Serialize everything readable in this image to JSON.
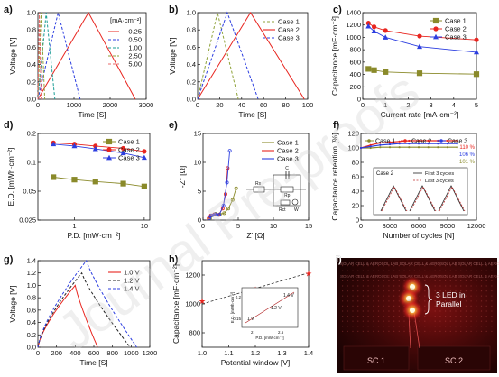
{
  "panel_labels": [
    "a)",
    "b)",
    "c)",
    "d)",
    "e)",
    "f)",
    "g)",
    "h)",
    "i)"
  ],
  "watermark": "Journal Pre-proofs",
  "chart_data": [
    {
      "panel": "a",
      "type": "line",
      "xlabel": "Time [S]",
      "ylabel": "Voltage [V]",
      "xlim": [
        0,
        3000
      ],
      "ylim": [
        0,
        1.0
      ],
      "xticks": [
        0,
        1000,
        2000,
        3000
      ],
      "yticks": [
        0.0,
        0.2,
        0.4,
        0.6,
        0.8,
        1.0
      ],
      "legend_title": "[mA·cm⁻²]",
      "series": [
        {
          "name": "0.25",
          "color": "#e8251f",
          "dash": "solid",
          "x": [
            0,
            1400,
            2700
          ],
          "y": [
            0,
            1.0,
            0
          ]
        },
        {
          "name": "0.50",
          "color": "#2c3ee0",
          "dash": "dash",
          "x": [
            0,
            560,
            1170
          ],
          "y": [
            0,
            1.0,
            0
          ]
        },
        {
          "name": "1.00",
          "color": "#1a9d96",
          "dash": "dash",
          "x": [
            0,
            230,
            470
          ],
          "y": [
            0,
            1.0,
            0
          ]
        },
        {
          "name": "2.50",
          "color": "#8fa23a",
          "dash": "dash",
          "x": [
            0,
            90,
            190
          ],
          "y": [
            0,
            1.0,
            0
          ]
        },
        {
          "name": "5.00",
          "color": "#e86a6a",
          "dash": "dash",
          "x": [
            0,
            40,
            90
          ],
          "y": [
            0,
            1.0,
            0
          ]
        }
      ]
    },
    {
      "panel": "b",
      "type": "line",
      "xlabel": "Time [S]",
      "ylabel": "Voltage [V]",
      "xlim": [
        0,
        100
      ],
      "ylim": [
        0,
        1.0
      ],
      "xticks": [
        0,
        20,
        40,
        60,
        80,
        100
      ],
      "yticks": [
        0.0,
        0.2,
        0.4,
        0.6,
        0.8,
        1.0
      ],
      "series": [
        {
          "name": "Case 1",
          "color": "#8fa23a",
          "dash": "dash",
          "x": [
            0,
            18,
            37
          ],
          "y": [
            0,
            1.0,
            0
          ]
        },
        {
          "name": "Case 2",
          "color": "#e8251f",
          "dash": "solid",
          "x": [
            0,
            48,
            97
          ],
          "y": [
            0,
            1.0,
            0
          ]
        },
        {
          "name": "Case 3",
          "color": "#2c3ee0",
          "dash": "dash",
          "x": [
            0,
            27,
            55
          ],
          "y": [
            0,
            1.0,
            0
          ]
        }
      ]
    },
    {
      "panel": "c",
      "type": "line",
      "xlabel": "Current rate [mA·cm⁻²]",
      "ylabel": "Capacitance [mF·cm⁻²]",
      "xlim": [
        0,
        5
      ],
      "ylim": [
        0,
        1400
      ],
      "xticks": [
        0,
        1,
        2,
        3,
        4,
        5
      ],
      "yticks": [
        0,
        200,
        400,
        600,
        800,
        1000,
        1200,
        1400
      ],
      "x": [
        0.25,
        0.5,
        1.0,
        2.5,
        5.0
      ],
      "series": [
        {
          "name": "Case 1",
          "color": "#8a8a2a",
          "marker": "square",
          "values": [
            490,
            470,
            440,
            420,
            405
          ]
        },
        {
          "name": "Case 2",
          "color": "#e8251f",
          "marker": "circle",
          "values": [
            1230,
            1170,
            1110,
            1020,
            960
          ]
        },
        {
          "name": "Case 3",
          "color": "#2c3ee0",
          "marker": "triangle",
          "values": [
            1180,
            1100,
            1000,
            850,
            760
          ]
        }
      ]
    },
    {
      "panel": "d",
      "type": "line",
      "xlabel": "P.D. [mW·cm⁻²]",
      "ylabel": "E.D. [mWh·cm⁻²]",
      "xscale": "log",
      "yscale": "log",
      "xlim": [
        0.3,
        12
      ],
      "ylim": [
        0.025,
        0.2
      ],
      "xticks": [
        1,
        10
      ],
      "yticks": [
        0.025,
        0.05,
        0.1,
        0.2
      ],
      "x": [
        0.5,
        1,
        2,
        5,
        10
      ],
      "series": [
        {
          "name": "Case 1",
          "color": "#8a8a2a",
          "marker": "square",
          "values": [
            0.07,
            0.066,
            0.063,
            0.06,
            0.056
          ]
        },
        {
          "name": "Case 2",
          "color": "#e8251f",
          "marker": "circle",
          "values": [
            0.16,
            0.155,
            0.148,
            0.14,
            0.13
          ]
        },
        {
          "name": "Case 3",
          "color": "#2c3ee0",
          "marker": "triangle",
          "values": [
            0.155,
            0.148,
            0.138,
            0.125,
            0.112
          ]
        }
      ]
    },
    {
      "panel": "e",
      "type": "scatter",
      "xlabel": "Z' [Ω]",
      "ylabel": "-Z\" [Ω]",
      "xlim": [
        0,
        15
      ],
      "ylim": [
        0,
        15
      ],
      "xticks": [
        0,
        5,
        10,
        15
      ],
      "yticks": [
        0,
        5,
        10,
        15
      ],
      "series": [
        {
          "name": "Case 1",
          "color": "#8a8a2a",
          "x": [
            1.0,
            1.3,
            1.8,
            2.4,
            3.0,
            3.6,
            4.2,
            4.7
          ],
          "y": [
            0.3,
            0.8,
            1.1,
            1.0,
            1.2,
            2.0,
            3.5,
            5.5
          ]
        },
        {
          "name": "Case 2",
          "color": "#e8251f",
          "x": [
            0.8,
            1.1,
            1.6,
            2.2,
            2.8,
            3.2,
            3.5
          ],
          "y": [
            0.3,
            0.8,
            1.0,
            0.9,
            2.0,
            4.5,
            9.0
          ]
        },
        {
          "name": "Case 3",
          "color": "#2c3ee0",
          "x": [
            0.9,
            1.2,
            1.7,
            2.3,
            2.9,
            3.4,
            3.8
          ],
          "y": [
            0.3,
            0.8,
            1.0,
            0.9,
            2.5,
            6.5,
            12.0
          ]
        }
      ],
      "inset": {
        "labels": [
          "Rs",
          "C",
          "Rp",
          "Rct",
          "W"
        ]
      }
    },
    {
      "panel": "f",
      "type": "line",
      "xlabel": "Number of cycles [N]",
      "ylabel": "Capacitance retention [%]",
      "xlim": [
        0,
        12000
      ],
      "ylim": [
        0,
        120
      ],
      "xticks": [
        0,
        3000,
        6000,
        9000,
        12000
      ],
      "yticks": [
        0,
        20,
        40,
        60,
        80,
        100,
        120
      ],
      "x": [
        0,
        1000,
        2000,
        3000,
        4000,
        5000,
        6000,
        7000,
        8000,
        9000,
        10000
      ],
      "series": [
        {
          "name": "Case 1",
          "color": "#8a8a2a",
          "values": [
            100,
            100,
            101,
            101,
            101,
            101,
            101,
            101,
            101,
            101,
            101
          ]
        },
        {
          "name": "Case 2",
          "color": "#e8251f",
          "values": [
            100,
            104,
            107,
            108,
            109,
            110,
            110,
            110,
            110,
            110,
            110
          ]
        },
        {
          "name": "Case 3",
          "color": "#2c3ee0",
          "values": [
            100,
            102,
            104,
            105,
            106,
            106,
            106,
            106,
            106,
            106,
            106
          ]
        }
      ],
      "end_labels": [
        "110 %",
        "106 %",
        "101 %"
      ],
      "inset": {
        "title": "Case 2",
        "legend": [
          "First 3 cycles",
          "Last 3 cycles"
        ]
      }
    },
    {
      "panel": "g",
      "type": "line",
      "xlabel": "Time [S]",
      "ylabel": "Voltage [V]",
      "xlim": [
        0,
        1200
      ],
      "ylim": [
        0,
        1.4
      ],
      "xticks": [
        0,
        200,
        400,
        600,
        800,
        1000,
        1200
      ],
      "yticks": [
        0.0,
        0.2,
        0.4,
        0.6,
        0.8,
        1.0,
        1.2,
        1.4
      ],
      "series": [
        {
          "name": "1.0 V",
          "color": "#e8251f",
          "dash": "solid",
          "x": [
            0,
            400,
            640
          ],
          "y": [
            0,
            1.0,
            0
          ]
        },
        {
          "name": "1.2 V",
          "color": "#222222",
          "dash": "dash",
          "x": [
            0,
            470,
            990
          ],
          "y": [
            0,
            1.2,
            0
          ]
        },
        {
          "name": "1.4 V",
          "color": "#2c3ee0",
          "dash": "dash",
          "x": [
            0,
            520,
            1060
          ],
          "y": [
            0,
            1.4,
            0
          ]
        }
      ]
    },
    {
      "panel": "h",
      "type": "scatter",
      "xlabel": "Potential window [V]",
      "ylabel": "Capacitance [mF·cm⁻²]",
      "xlim": [
        1.0,
        1.4
      ],
      "ylim": [
        700,
        1300
      ],
      "xticks": [
        1.0,
        1.1,
        1.2,
        1.3,
        1.4
      ],
      "yticks": [
        800,
        1000,
        1200
      ],
      "x": [
        1.0,
        1.2,
        1.4
      ],
      "values": [
        1020,
        1100,
        1210
      ],
      "color": "#e8251f",
      "inset": {
        "xlabel": "P.D. [mW·cm⁻²]",
        "ylabel": "E.D. [mWh·cm⁻²]",
        "labels": [
          "1.4 V",
          "1.2 V",
          "1 V"
        ],
        "xticks": [
          "2",
          "2.5"
        ],
        "yticks": [
          "0.15",
          "0.2"
        ]
      }
    }
  ],
  "photo": {
    "label": "i)",
    "annotation_line1": "3 LED in",
    "annotation_line2": "Parallel",
    "cells": [
      "SC 1",
      "SC 2"
    ],
    "board_text": "SOLAR CELL & AEROSOL LAB"
  }
}
